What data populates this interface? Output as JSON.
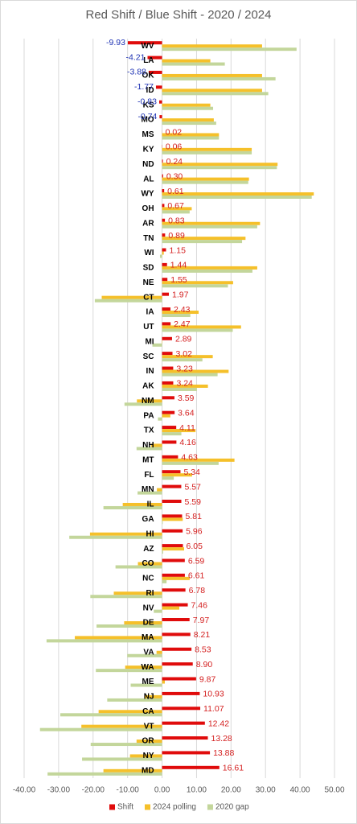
{
  "chart_data": {
    "type": "hbar",
    "title": "Red Shift / Blue Shift - 2020 / 2024",
    "categories": [
      "WV",
      "LA",
      "OK",
      "ID",
      "KS",
      "MO",
      "MS",
      "KY",
      "ND",
      "AL",
      "WY",
      "OH",
      "AR",
      "TN",
      "WI",
      "SD",
      "NE",
      "CT",
      "IA",
      "UT",
      "MI",
      "SC",
      "IN",
      "AK",
      "NM",
      "PA",
      "TX",
      "NH",
      "MT",
      "FL",
      "MN",
      "IL",
      "GA",
      "HI",
      "AZ",
      "CO",
      "NC",
      "RI",
      "NV",
      "DE",
      "MA",
      "VA",
      "WA",
      "ME",
      "NJ",
      "CA",
      "VT",
      "OR",
      "NY",
      "MD"
    ],
    "series": [
      {
        "name": "Shift",
        "color": "#e00b0b",
        "values": [
          -9.93,
          -4.21,
          -3.88,
          -1.77,
          -0.83,
          -0.74,
          0.02,
          0.06,
          0.24,
          0.3,
          0.61,
          0.67,
          0.83,
          0.89,
          1.15,
          1.44,
          1.55,
          1.97,
          2.43,
          2.47,
          2.89,
          3.02,
          3.23,
          3.24,
          3.59,
          3.64,
          4.11,
          4.16,
          4.63,
          5.34,
          5.57,
          5.59,
          5.81,
          5.96,
          6.05,
          6.59,
          6.61,
          6.78,
          7.46,
          7.97,
          8.21,
          8.53,
          8.9,
          9.87,
          10.93,
          11.07,
          12.42,
          13.28,
          13.88,
          16.61
        ],
        "value_labels": [
          "-9.93",
          "-4.21",
          "-3.88",
          "-1.77",
          "-0.83",
          "-0.74",
          "0.02",
          "0.06",
          "0.24",
          "0.30",
          "0.61",
          "0.67",
          "0.83",
          "0.89",
          "1.15",
          "1.44",
          "1.55",
          "1.97",
          "2.43",
          "2.47",
          "2.89",
          "3.02",
          "3.23",
          "3.24",
          "3.59",
          "3.64",
          "4.11",
          "4.16",
          "4.63",
          "5.34",
          "5.57",
          "5.59",
          "5.81",
          "5.96",
          "6.05",
          "6.59",
          "6.61",
          "6.78",
          "7.46",
          "7.97",
          "8.21",
          "8.53",
          "8.90",
          "9.87",
          "10.93",
          "11.07",
          "12.42",
          "13.28",
          "13.88",
          "16.61"
        ]
      },
      {
        "name": "2024 polling",
        "color": "#f5c02a",
        "values": [
          29,
          14,
          29,
          29,
          14,
          15,
          16.5,
          26,
          33.5,
          25.2,
          44,
          8.6,
          28.4,
          24.2,
          0.5,
          27.6,
          20.6,
          -17.5,
          10.6,
          22.9,
          0.1,
          14.7,
          19.3,
          13.3,
          -7.3,
          2.4,
          9.7,
          -3.2,
          21,
          8.7,
          -1.5,
          -11.4,
          6,
          -20.9,
          6.4,
          -7,
          8,
          -14,
          5,
          -11,
          -25.3,
          -1.6,
          -10.7,
          0.8,
          -5,
          -18.4,
          -23.4,
          -7.4,
          -9.3,
          -17
        ],
        "values_note_free": null
      },
      {
        "name": "2020 gap",
        "color": "#c3d69b",
        "values": [
          39,
          18.2,
          32.9,
          30.8,
          14.8,
          15.7,
          16.5,
          26,
          33.3,
          25,
          43.4,
          8,
          27.6,
          23.2,
          -0.6,
          26.2,
          19.1,
          -19.5,
          8.2,
          20.5,
          -2.8,
          11.7,
          16.1,
          10.1,
          -10.9,
          -1.2,
          5.6,
          -7.4,
          16.4,
          3.4,
          -7.1,
          -17,
          0.2,
          -26.9,
          0.3,
          -13.5,
          1.3,
          -20.8,
          -2.4,
          -19,
          -33.5,
          -10.1,
          -19.2,
          -9.1,
          -15.9,
          -29.5,
          -35.4,
          -20.7,
          -23.2,
          -33.2
        ]
      }
    ],
    "xlim": [
      -40,
      50
    ],
    "xticks": [
      {
        "value": -40,
        "label": "-40.00"
      },
      {
        "value": -30,
        "label": "-30.00"
      },
      {
        "value": -20,
        "label": "-20.00"
      },
      {
        "value": -10,
        "label": "-10.00"
      },
      {
        "value": 0,
        "label": "0.00"
      },
      {
        "value": 10,
        "label": "10.00"
      },
      {
        "value": 20,
        "label": "20.00"
      },
      {
        "value": 30,
        "label": "30.00"
      },
      {
        "value": 40,
        "label": "40.00"
      },
      {
        "value": 50,
        "label": "50.00"
      }
    ],
    "grid": true,
    "legend": "bottom"
  }
}
